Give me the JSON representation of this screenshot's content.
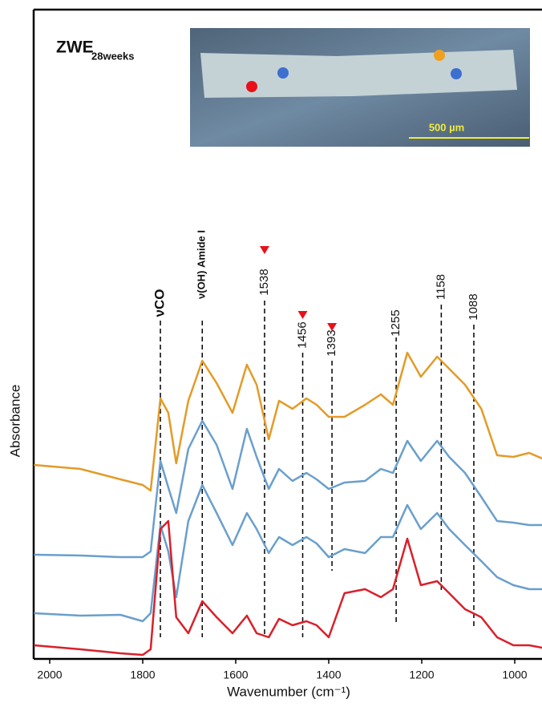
{
  "chart_data": {
    "type": "line",
    "inset_title": {
      "main": "ZWE",
      "sub": "28weeks"
    },
    "scale_bar": "500 µm",
    "xlabel": "Wavenumber (cm⁻¹)",
    "ylabel": "Absorbance",
    "xlim": [
      2034.5,
      941.4
    ],
    "ylim": [
      0,
      810
    ],
    "xticks": [
      2000,
      1800,
      1600,
      1400,
      1200,
      1000
    ],
    "x": [
      2034,
      1934,
      1848,
      1800,
      1783,
      1762,
      1745,
      1728,
      1702,
      1672,
      1641,
      1607,
      1576,
      1555,
      1529,
      1507,
      1478,
      1448,
      1426,
      1400,
      1366,
      1322,
      1288,
      1262,
      1231,
      1202,
      1167,
      1141,
      1107,
      1072,
      1038,
      1003,
      969,
      941
    ],
    "series": [
      {
        "color": "#e39b28",
        "values": [
          242,
          237,
          224,
          217,
          210,
          325,
          307,
          244,
          322,
          372,
          344,
          307,
          367,
          342,
          274,
          322,
          312,
          325,
          317,
          302,
          302,
          317,
          330,
          317,
          382,
          352,
          377,
          362,
          342,
          312,
          254,
          252,
          257,
          250
        ]
      },
      {
        "color": "#6a9fcc",
        "values": [
          130,
          129,
          127,
          127,
          134,
          247,
          214,
          182,
          262,
          297,
          267,
          212,
          287,
          252,
          212,
          237,
          222,
          232,
          224,
          212,
          220,
          222,
          237,
          232,
          272,
          247,
          272,
          252,
          232,
          202,
          172,
          170,
          167,
          167
        ]
      },
      {
        "color": "#6a9fcc",
        "values": [
          57,
          54,
          55,
          47,
          57,
          167,
          134,
          77,
          172,
          217,
          182,
          142,
          182,
          162,
          132,
          152,
          142,
          152,
          144,
          127,
          137,
          132,
          152,
          152,
          192,
          162,
          182,
          162,
          142,
          122,
          102,
          92,
          87,
          87
        ]
      },
      {
        "color": "#d9202a",
        "values": [
          17,
          12,
          7,
          5,
          12,
          162,
          172,
          52,
          32,
          72,
          52,
          32,
          54,
          32,
          27,
          50,
          42,
          47,
          42,
          27,
          82,
          87,
          77,
          87,
          150,
          92,
          97,
          82,
          62,
          52,
          27,
          17,
          17,
          14
        ]
      }
    ],
    "annotations": [
      {
        "label": "νCO",
        "x": 1762,
        "marker": false
      },
      {
        "label": "ν(OH) Amide I",
        "x": 1672,
        "marker": false
      },
      {
        "label": "1538",
        "x": 1538,
        "marker": true
      },
      {
        "label": "1456",
        "x": 1456,
        "marker": true
      },
      {
        "label": "1393",
        "x": 1393,
        "marker": true
      },
      {
        "label": "1255",
        "x": 1255,
        "marker": false
      },
      {
        "label": "1158",
        "x": 1158,
        "marker": false
      },
      {
        "label": "1088",
        "x": 1088,
        "marker": false
      }
    ]
  }
}
